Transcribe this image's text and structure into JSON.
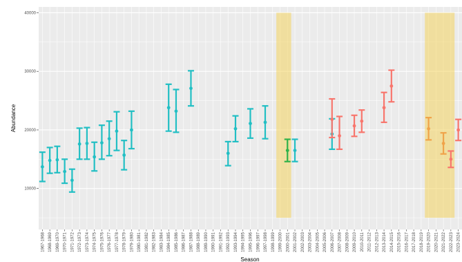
{
  "chart_data": {
    "type": "scatter",
    "xlabel": "Season",
    "ylabel": "Abundance",
    "ylim": [
      3000,
      41000
    ],
    "yticks": [
      10000,
      20000,
      30000,
      40000
    ],
    "ytick_labels": [
      "10000",
      "20000",
      "30000",
      "40000"
    ],
    "grid": true,
    "legend": "none",
    "panel_background": "#ebebeb",
    "colors": {
      "teal": "#22bfc4",
      "green": "#2fb24a",
      "salmon": "#f8766d",
      "orange": "#f0a34a",
      "highlight": "#f4d35e"
    },
    "seasons": [
      "1967-1968",
      "1968-1969",
      "1969-1970",
      "1970-1971",
      "1971-1972",
      "1972-1973",
      "1973-1974",
      "1974-1975",
      "1975-1976",
      "1976-1977",
      "1977-1978",
      "1978-1979",
      "1979-1980",
      "1980-1981",
      "1981-1982",
      "1982-1983",
      "1983-1984",
      "1984-1985",
      "1985-1986",
      "1986-1987",
      "1987-1988",
      "1988-1989",
      "1989-1990",
      "1990-1991",
      "1991-1992",
      "1992-1993",
      "1993-1994",
      "1994-1995",
      "1995-1996",
      "1996-1997",
      "1997-1998",
      "1998-1999",
      "1999-2000",
      "2000-2001",
      "2001-2002",
      "2002-2003",
      "2003-2004",
      "2004-2005",
      "2005-2006",
      "2006-2007",
      "2007-2008",
      "2008-2009",
      "2009-2010",
      "2010-2011",
      "2011-2012",
      "2012-2013",
      "2013-2014",
      "2014-2015",
      "2015-2016",
      "2016-2017",
      "2017-2018",
      "2018-2019",
      "2019-2020",
      "2020-2021",
      "2021-2022",
      "2022-2023",
      "2023-2024"
    ],
    "highlight_ranges": [
      {
        "from": "1999-2000",
        "to": "2000-2001",
        "ymin": 5000,
        "ymax": 40000
      },
      {
        "from": "2019-2020",
        "to": "2022-2023",
        "ymin": 5000,
        "ymax": 40000
      }
    ],
    "points": [
      {
        "season": "1967-1968",
        "y": 13700,
        "low": 11200,
        "high": 16200,
        "color": "teal"
      },
      {
        "season": "1968-1969",
        "y": 14800,
        "low": 12600,
        "high": 17000,
        "color": "teal"
      },
      {
        "season": "1969-1970",
        "y": 14900,
        "low": 12700,
        "high": 17200,
        "color": "teal"
      },
      {
        "season": "1970-1971",
        "y": 12900,
        "low": 10900,
        "high": 15000,
        "color": "teal"
      },
      {
        "season": "1971-1972",
        "y": 11400,
        "low": 9400,
        "high": 13300,
        "color": "teal"
      },
      {
        "season": "1972-1973",
        "y": 17600,
        "low": 15000,
        "high": 20300,
        "color": "teal"
      },
      {
        "season": "1973-1974",
        "y": 17700,
        "low": 15000,
        "high": 20400,
        "color": "teal"
      },
      {
        "season": "1974-1975",
        "y": 15400,
        "low": 13000,
        "high": 17900,
        "color": "teal"
      },
      {
        "season": "1975-1976",
        "y": 17800,
        "low": 15000,
        "high": 20800,
        "color": "teal"
      },
      {
        "season": "1976-1977",
        "y": 18500,
        "low": 15600,
        "high": 21500,
        "color": "teal"
      },
      {
        "season": "1977-1978",
        "y": 19800,
        "low": 16500,
        "high": 23100,
        "color": "teal"
      },
      {
        "season": "1978-1979",
        "y": 15700,
        "low": 13200,
        "high": 18200,
        "color": "teal"
      },
      {
        "season": "1979-1980",
        "y": 20000,
        "low": 16800,
        "high": 23200,
        "color": "teal"
      },
      {
        "season": "1984-1985",
        "y": 23800,
        "low": 19800,
        "high": 27800,
        "color": "teal"
      },
      {
        "season": "1985-1986",
        "y": 23200,
        "low": 19600,
        "high": 26900,
        "color": "teal"
      },
      {
        "season": "1987-1988",
        "y": 27100,
        "low": 24100,
        "high": 30100,
        "color": "teal"
      },
      {
        "season": "1992-1993",
        "y": 16000,
        "low": 13900,
        "high": 18000,
        "color": "teal"
      },
      {
        "season": "1993-1994",
        "y": 20200,
        "low": 18000,
        "high": 22400,
        "color": "teal"
      },
      {
        "season": "1995-1996",
        "y": 21100,
        "low": 18600,
        "high": 23600,
        "color": "teal"
      },
      {
        "season": "1997-1998",
        "y": 21300,
        "low": 18500,
        "high": 24100,
        "color": "teal"
      },
      {
        "season": "2000-2001",
        "y": 16500,
        "low": 14600,
        "high": 18400,
        "color": "green"
      },
      {
        "season": "2001-2002",
        "y": 16500,
        "low": 14600,
        "high": 18400,
        "color": "teal"
      },
      {
        "season": "2006-2007",
        "y": 19300,
        "low": 16700,
        "high": 21900,
        "color": "teal"
      },
      {
        "season": "2006-2007",
        "y": 21800,
        "low": 18700,
        "high": 25300,
        "color": "salmon"
      },
      {
        "season": "2007-2008",
        "y": 19000,
        "low": 16700,
        "high": 22300,
        "color": "salmon"
      },
      {
        "season": "2009-2010",
        "y": 20700,
        "low": 18900,
        "high": 22500,
        "color": "salmon"
      },
      {
        "season": "2010-2011",
        "y": 21500,
        "low": 19600,
        "high": 23400,
        "color": "salmon"
      },
      {
        "season": "2013-2014",
        "y": 23800,
        "low": 21300,
        "high": 26400,
        "color": "salmon"
      },
      {
        "season": "2014-2015",
        "y": 27500,
        "low": 24800,
        "high": 30200,
        "color": "salmon"
      },
      {
        "season": "2019-2020",
        "y": 20200,
        "low": 18300,
        "high": 22100,
        "color": "orange"
      },
      {
        "season": "2021-2022",
        "y": 17700,
        "low": 15900,
        "high": 19500,
        "color": "orange"
      },
      {
        "season": "2022-2023",
        "y": 15000,
        "low": 13600,
        "high": 16400,
        "color": "salmon"
      },
      {
        "season": "2023-2024",
        "y": 20000,
        "low": 18200,
        "high": 21800,
        "color": "salmon"
      }
    ]
  }
}
